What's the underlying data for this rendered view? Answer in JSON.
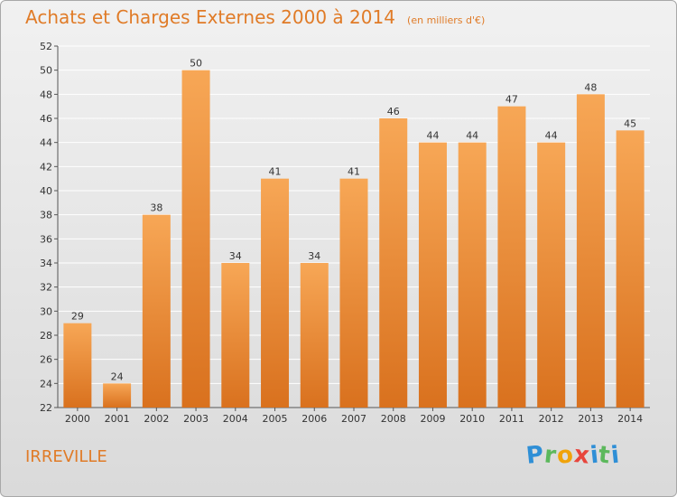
{
  "title": "Achats et Charges Externes 2000 à 2014",
  "subtitle": "(en milliers d'€)",
  "place_name": "IRREVILLE",
  "logo": {
    "letters": [
      "P",
      "r",
      "o",
      "x",
      "i",
      "t",
      "i"
    ],
    "colors": [
      "#2f8fd6",
      "#5cb85c",
      "#f0a30a",
      "#e8453c",
      "#2f8fd6",
      "#5cb85c",
      "#2f8fd6"
    ]
  },
  "colors": {
    "bar_top": "#f7a756",
    "bar_bottom": "#d9711e",
    "grid": "#ffffff",
    "text": "#333333",
    "accent": "#e07b27"
  },
  "chart_data": {
    "type": "bar",
    "title": "Achats et Charges Externes 2000 à 2014",
    "subtitle": "(en milliers d'€)",
    "xlabel": "",
    "ylabel": "",
    "categories": [
      "2000",
      "2001",
      "2002",
      "2003",
      "2004",
      "2005",
      "2006",
      "2007",
      "2008",
      "2009",
      "2010",
      "2011",
      "2012",
      "2013",
      "2014"
    ],
    "values": [
      29,
      24,
      38,
      50,
      34,
      41,
      34,
      41,
      46,
      44,
      44,
      47,
      44,
      48,
      45
    ],
    "ylim": [
      22,
      52
    ],
    "yticks": [
      22,
      24,
      26,
      28,
      30,
      32,
      34,
      36,
      38,
      40,
      42,
      44,
      46,
      48,
      50,
      52
    ],
    "grid": true,
    "data_labels": true
  }
}
